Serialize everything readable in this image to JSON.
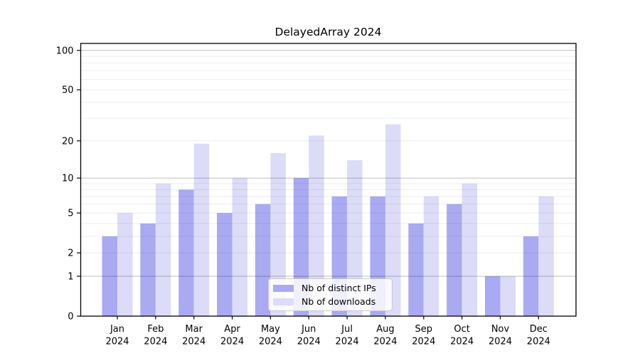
{
  "chart_data": {
    "type": "bar",
    "title": "DelayedArray 2024",
    "yscale": "log1p",
    "grid": true,
    "categories": [
      "Jan",
      "Feb",
      "Mar",
      "Apr",
      "May",
      "Jun",
      "Jul",
      "Aug",
      "Sep",
      "Oct",
      "Nov",
      "Dec"
    ],
    "year": "2024",
    "series": [
      {
        "name": "Nb of distinct IPs",
        "color": "#aaaaf2",
        "values": [
          3,
          4,
          8,
          5,
          6,
          10,
          7,
          7,
          4,
          6,
          1,
          3
        ]
      },
      {
        "name": "Nb of downloads",
        "color": "#dcdcf8",
        "values": [
          5,
          9,
          19,
          10,
          16,
          22,
          14,
          27,
          7,
          9,
          1,
          7
        ]
      }
    ],
    "ytick_values": [
      0,
      1,
      2,
      5,
      10,
      20,
      50,
      100
    ],
    "ytick_labels": [
      "0",
      "1",
      "2",
      "5",
      "10",
      "20",
      "50",
      "100"
    ],
    "ymajor_gridlines": [
      1,
      10,
      100
    ],
    "yminor_gridlines": [
      2,
      3,
      4,
      5,
      6,
      7,
      8,
      9,
      20,
      30,
      40,
      50,
      60,
      70,
      80,
      90
    ],
    "ylim": [
      0,
      113
    ],
    "legend_position": "lower-center"
  }
}
